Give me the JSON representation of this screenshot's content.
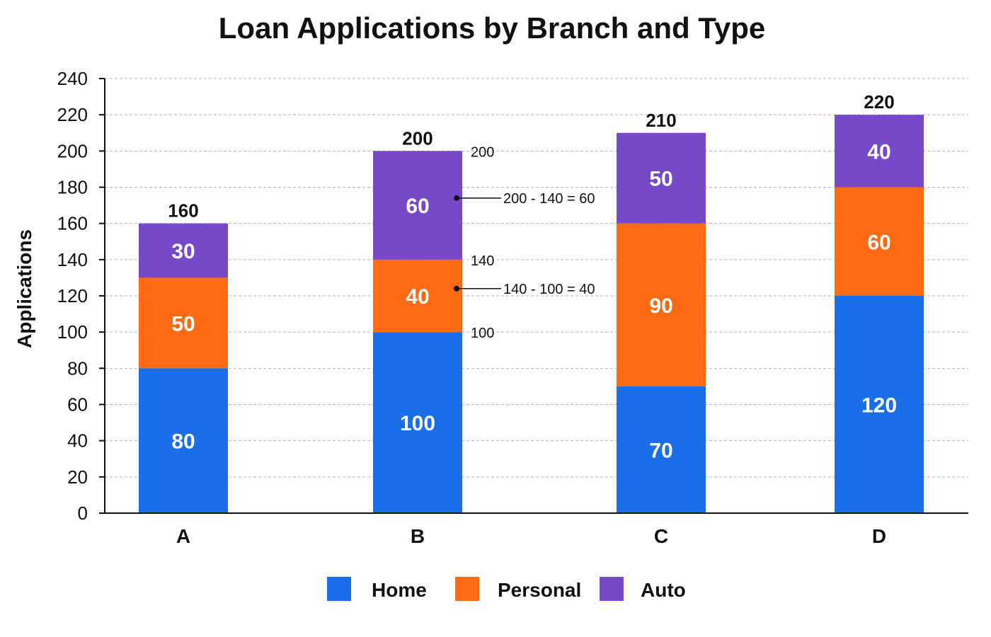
{
  "chart_data": {
    "type": "bar",
    "stacked": true,
    "title": "Loan Applications by Branch and Type",
    "xlabel": "",
    "ylabel": "Applications",
    "categories": [
      "A",
      "B",
      "C",
      "D"
    ],
    "series": [
      {
        "name": "Home",
        "values": [
          80,
          100,
          70,
          120
        ],
        "color": "#1a6fe8"
      },
      {
        "name": "Personal",
        "values": [
          50,
          40,
          90,
          60
        ],
        "color": "#ff6a13"
      },
      {
        "name": "Auto",
        "values": [
          30,
          60,
          50,
          40
        ],
        "color": "#7649c9"
      }
    ],
    "totals": [
      "160",
      "200",
      "210",
      "220"
    ],
    "ylim": [
      0,
      240
    ],
    "yticks": [
      0,
      20,
      40,
      60,
      80,
      100,
      120,
      140,
      160,
      180,
      200,
      220,
      240
    ],
    "grid": true,
    "legend": "bottom-center",
    "annotations": {
      "level_labels": [
        {
          "category": "B",
          "value": 200,
          "text": "200"
        },
        {
          "category": "B",
          "value": 140,
          "text": "140"
        },
        {
          "category": "B",
          "value": 100,
          "text": "100"
        }
      ],
      "callouts": [
        {
          "category": "B",
          "value": 174,
          "text": "200 - 140 = 60"
        },
        {
          "category": "B",
          "value": 124,
          "text": "140 - 100 = 40"
        }
      ]
    }
  }
}
